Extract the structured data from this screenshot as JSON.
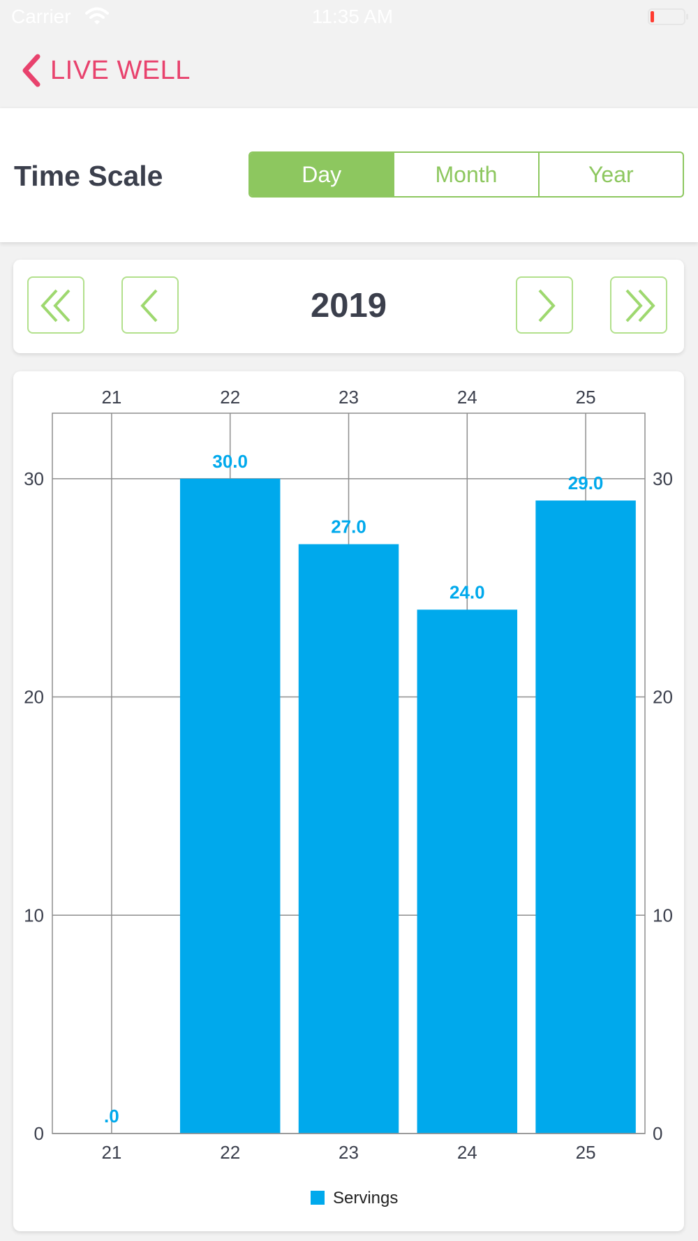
{
  "status_bar": {
    "carrier": "Carrier",
    "time": "11:35 AM"
  },
  "nav": {
    "back_label": "LIVE WELL"
  },
  "time_scale": {
    "label": "Time Scale",
    "options": [
      "Day",
      "Month",
      "Year"
    ],
    "selected": "Day"
  },
  "year_nav": {
    "year": "2019"
  },
  "colors": {
    "accent_pink": "#e8426d",
    "accent_green": "#8dc75f",
    "bar_blue": "#00a9ec"
  },
  "chart_data": {
    "type": "bar",
    "categories": [
      "21",
      "22",
      "23",
      "24",
      "25"
    ],
    "values": [
      0,
      30,
      27,
      24,
      29
    ],
    "value_labels": [
      ".0",
      "30.0",
      "27.0",
      "24.0",
      "29.0"
    ],
    "series": [
      {
        "name": "Servings",
        "values": [
          0,
          30,
          27,
          24,
          29
        ]
      }
    ],
    "ylim": [
      0,
      33
    ],
    "yticks": [
      0,
      10,
      20,
      30
    ],
    "x_axis": "top and bottom",
    "y_axis": "left and right",
    "grid": true,
    "legend": "bottom-center"
  }
}
